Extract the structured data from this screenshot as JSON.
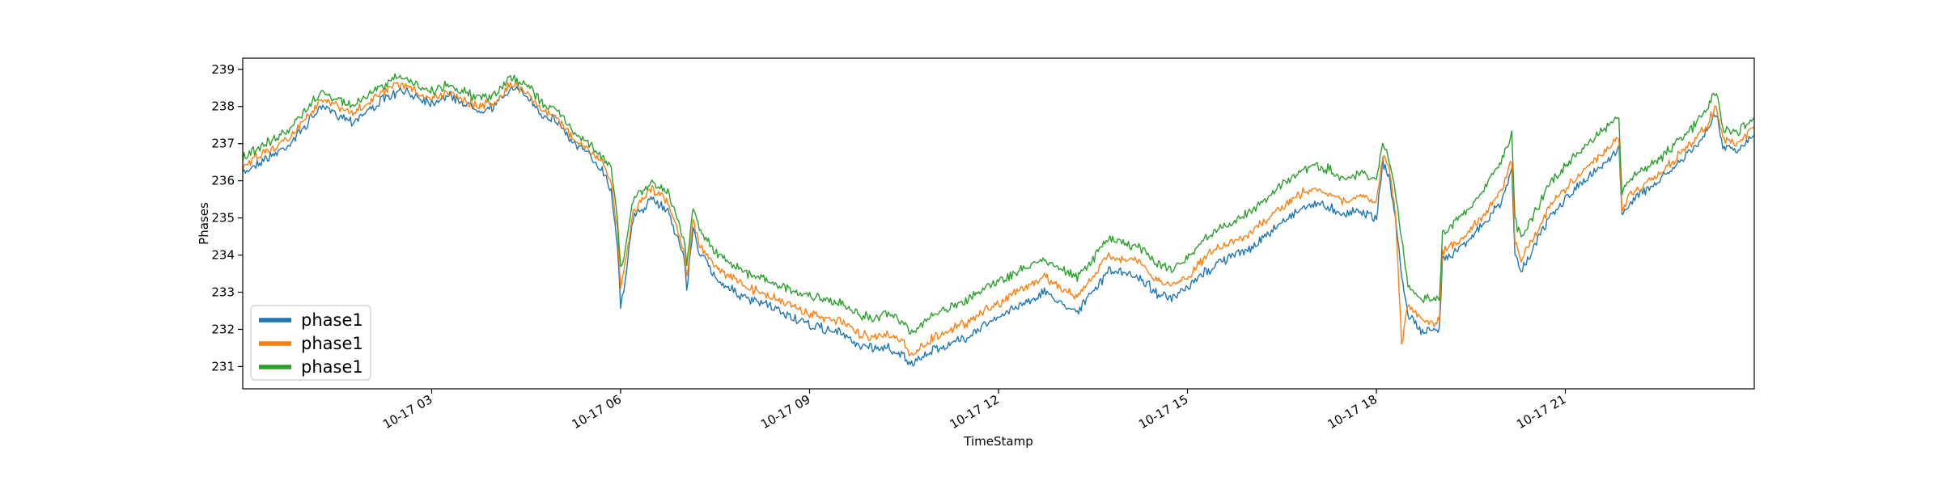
{
  "chart_data": {
    "type": "line",
    "title": "",
    "xlabel": "TimeStamp",
    "ylabel": "Phases",
    "xlim": [
      0.0,
      24.0
    ],
    "ylim": [
      230.4,
      239.3
    ],
    "grid": false,
    "legend": "lower-left",
    "x_ticks": [
      {
        "value": 3,
        "label": "10-17 03"
      },
      {
        "value": 6,
        "label": "10-17 06"
      },
      {
        "value": 9,
        "label": "10-17 09"
      },
      {
        "value": 12,
        "label": "10-17 12"
      },
      {
        "value": 15,
        "label": "10-17 15"
      },
      {
        "value": 18,
        "label": "10-17 18"
      },
      {
        "value": 21,
        "label": "10-17 21"
      }
    ],
    "y_ticks": [
      {
        "value": 231,
        "label": "231"
      },
      {
        "value": 232,
        "label": "232"
      },
      {
        "value": 233,
        "label": "233"
      },
      {
        "value": 234,
        "label": "234"
      },
      {
        "value": 235,
        "label": "235"
      },
      {
        "value": 236,
        "label": "236"
      },
      {
        "value": 237,
        "label": "237"
      },
      {
        "value": 238,
        "label": "238"
      },
      {
        "value": 239,
        "label": "239"
      }
    ],
    "x": [
      0.0,
      0.25,
      0.5,
      0.75,
      1.0,
      1.25,
      1.5,
      1.75,
      2.0,
      2.25,
      2.5,
      2.75,
      3.0,
      3.25,
      3.5,
      3.75,
      4.0,
      4.25,
      4.5,
      4.75,
      5.0,
      5.25,
      5.5,
      5.75,
      5.85,
      5.95,
      6.0,
      6.05,
      6.2,
      6.5,
      6.75,
      7.0,
      7.05,
      7.15,
      7.25,
      7.5,
      7.75,
      8.0,
      8.25,
      8.5,
      8.75,
      9.0,
      9.25,
      9.5,
      9.75,
      10.0,
      10.25,
      10.5,
      10.6,
      10.75,
      11.0,
      11.25,
      11.5,
      11.75,
      12.0,
      12.25,
      12.5,
      12.75,
      13.0,
      13.25,
      13.5,
      13.75,
      14.0,
      14.25,
      14.5,
      14.75,
      15.0,
      15.25,
      15.5,
      15.75,
      16.0,
      16.25,
      16.5,
      16.75,
      17.0,
      17.25,
      17.5,
      17.75,
      18.0,
      18.1,
      18.2,
      18.3,
      18.4,
      18.5,
      18.75,
      19.0,
      19.05,
      19.25,
      19.5,
      19.75,
      20.0,
      20.15,
      20.2,
      20.3,
      20.5,
      20.75,
      21.0,
      21.25,
      21.5,
      21.75,
      21.85,
      21.9,
      22.0,
      22.25,
      22.5,
      22.75,
      23.0,
      23.25,
      23.35,
      23.4,
      23.5,
      23.75,
      24.0
    ],
    "series": [
      {
        "name": "phase1",
        "color": "#1f77b4",
        "values": [
          236.2,
          236.5,
          236.7,
          237.0,
          237.5,
          238.0,
          237.8,
          237.6,
          237.9,
          238.2,
          238.4,
          238.3,
          238.1,
          238.3,
          238.1,
          237.9,
          238.0,
          238.5,
          238.3,
          237.8,
          237.6,
          237.0,
          236.7,
          236.2,
          235.7,
          234.3,
          232.6,
          233.1,
          235.0,
          235.5,
          235.2,
          234.0,
          233.1,
          234.7,
          234.1,
          233.4,
          233.1,
          232.8,
          232.7,
          232.5,
          232.3,
          232.1,
          232.0,
          231.9,
          231.6,
          231.5,
          231.5,
          231.3,
          231.0,
          231.2,
          231.5,
          231.6,
          231.8,
          232.1,
          232.3,
          232.6,
          232.8,
          233.0,
          232.7,
          232.5,
          233.0,
          233.6,
          233.5,
          233.4,
          233.0,
          232.8,
          233.1,
          233.5,
          233.8,
          234.0,
          234.2,
          234.5,
          234.9,
          235.2,
          235.4,
          235.3,
          235.1,
          235.2,
          235.0,
          236.5,
          236.1,
          235.0,
          233.5,
          232.4,
          231.9,
          232.0,
          233.9,
          234.1,
          234.5,
          234.9,
          235.5,
          236.3,
          234.0,
          233.6,
          234.2,
          235.0,
          235.5,
          235.9,
          236.3,
          236.7,
          236.9,
          235.0,
          235.4,
          235.7,
          236.0,
          236.4,
          236.8,
          237.3,
          237.7,
          237.8,
          236.9,
          236.8,
          237.3
        ]
      },
      {
        "name": "phase1",
        "color": "#ff7f0e",
        "values": [
          236.4,
          236.7,
          236.9,
          237.2,
          237.7,
          238.2,
          238.0,
          237.8,
          238.1,
          238.4,
          238.6,
          238.4,
          238.2,
          238.4,
          238.2,
          238.0,
          238.1,
          238.6,
          238.4,
          237.9,
          237.7,
          237.1,
          236.8,
          236.4,
          236.0,
          234.6,
          233.1,
          233.5,
          235.2,
          235.8,
          235.4,
          234.2,
          233.4,
          234.9,
          234.3,
          233.7,
          233.4,
          233.1,
          233.0,
          232.8,
          232.6,
          232.4,
          232.3,
          232.2,
          231.9,
          231.8,
          231.9,
          231.6,
          231.3,
          231.5,
          231.8,
          232.0,
          232.2,
          232.5,
          232.7,
          233.0,
          233.2,
          233.4,
          233.1,
          232.9,
          233.4,
          234.0,
          233.9,
          233.8,
          233.3,
          233.2,
          233.4,
          233.9,
          234.2,
          234.4,
          234.6,
          234.9,
          235.3,
          235.6,
          235.8,
          235.7,
          235.4,
          235.6,
          235.4,
          236.7,
          236.3,
          235.2,
          231.6,
          232.6,
          232.2,
          232.2,
          234.1,
          234.3,
          234.7,
          235.2,
          235.8,
          236.6,
          234.3,
          233.9,
          234.5,
          235.3,
          235.8,
          236.2,
          236.6,
          237.0,
          237.1,
          235.2,
          235.6,
          235.9,
          236.2,
          236.6,
          237.0,
          237.5,
          237.9,
          238.0,
          237.1,
          237.0,
          237.5
        ]
      },
      {
        "name": "phase1",
        "color": "#2ca02c",
        "values": [
          236.6,
          236.9,
          237.1,
          237.4,
          237.9,
          238.4,
          238.2,
          238.0,
          238.3,
          238.6,
          238.8,
          238.6,
          238.4,
          238.6,
          238.4,
          238.2,
          238.3,
          238.8,
          238.6,
          238.1,
          237.9,
          237.3,
          237.0,
          236.6,
          236.3,
          235.0,
          233.6,
          234.0,
          235.5,
          236.0,
          235.7,
          234.5,
          233.8,
          235.3,
          234.7,
          234.1,
          233.8,
          233.5,
          233.4,
          233.2,
          233.0,
          232.9,
          232.8,
          232.7,
          232.4,
          232.3,
          232.4,
          232.2,
          231.9,
          232.1,
          232.4,
          232.6,
          232.8,
          233.1,
          233.3,
          233.5,
          233.7,
          233.9,
          233.6,
          233.4,
          233.9,
          234.5,
          234.3,
          234.2,
          233.8,
          233.6,
          233.9,
          234.4,
          234.7,
          234.9,
          235.2,
          235.5,
          235.9,
          236.2,
          236.4,
          236.3,
          236.0,
          236.2,
          236.0,
          237.0,
          236.6,
          235.6,
          234.5,
          233.2,
          232.8,
          232.8,
          234.6,
          234.9,
          235.3,
          235.9,
          236.6,
          237.3,
          234.9,
          234.5,
          235.1,
          235.9,
          236.4,
          236.8,
          237.2,
          237.6,
          237.7,
          235.6,
          236.0,
          236.3,
          236.6,
          237.0,
          237.4,
          237.9,
          238.3,
          238.4,
          237.4,
          237.3,
          237.8
        ]
      }
    ]
  }
}
